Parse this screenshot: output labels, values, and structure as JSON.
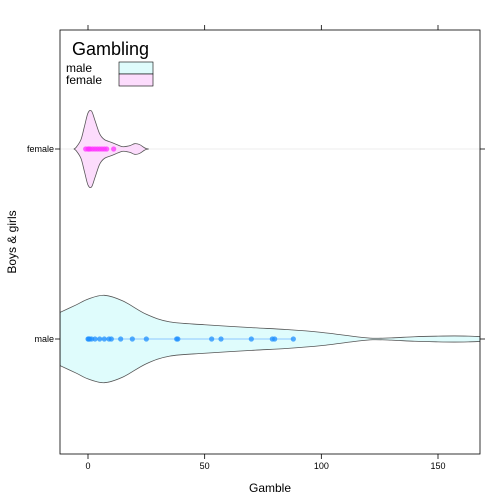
{
  "chart_data": {
    "type": "violin",
    "title": "",
    "xlabel": "Gamble",
    "ylabel": "Boys & girls",
    "xlim": [
      -12,
      168
    ],
    "x_ticks": [
      0,
      50,
      100,
      150
    ],
    "x_tick_labels": [
      "0",
      "50",
      "100",
      "150"
    ],
    "categories": [
      "male",
      "female"
    ],
    "legend": {
      "title": "Gambling",
      "position": "top-left",
      "entries": [
        "male",
        "female"
      ]
    },
    "colors": {
      "male_fill": "#dffcfc",
      "female_fill": "#fcdcfc",
      "male_points": "#1f8fff",
      "female_points": "#ff33ff",
      "outline": "#555555",
      "male_line": "#8ec8ff",
      "female_line": "#f2d2f2"
    },
    "series": [
      {
        "name": "male",
        "points": [
          0,
          0.3,
          0.7,
          1.5,
          3,
          5,
          7,
          9,
          10,
          14,
          19,
          25,
          38,
          38.5,
          53,
          57,
          70,
          79,
          80,
          88
        ],
        "density": [
          [
            -12,
            0.14
          ],
          [
            -5,
            0.18
          ],
          [
            0,
            0.21
          ],
          [
            7,
            0.23
          ],
          [
            15,
            0.2
          ],
          [
            25,
            0.13
          ],
          [
            35,
            0.09
          ],
          [
            50,
            0.075
          ],
          [
            70,
            0.06
          ],
          [
            85,
            0.05
          ],
          [
            100,
            0.035
          ],
          [
            115,
            0.012
          ],
          [
            122,
            0.004
          ],
          [
            130,
            0.006
          ],
          [
            140,
            0.012
          ],
          [
            150,
            0.015
          ],
          [
            157,
            0.016
          ],
          [
            163,
            0.015
          ],
          [
            168,
            0.013
          ]
        ]
      },
      {
        "name": "female",
        "points": [
          -1,
          0,
          0.4,
          1,
          2,
          3,
          4,
          5,
          6,
          7,
          8,
          11
        ],
        "density": [
          [
            -6,
            0.0
          ],
          [
            -5,
            0.01
          ],
          [
            -3,
            0.05
          ],
          [
            -1.5,
            0.12
          ],
          [
            0,
            0.19
          ],
          [
            1.5,
            0.2
          ],
          [
            3,
            0.15
          ],
          [
            5,
            0.08
          ],
          [
            7,
            0.05
          ],
          [
            10,
            0.035
          ],
          [
            13,
            0.02
          ],
          [
            15,
            0.012
          ],
          [
            18,
            0.018
          ],
          [
            20,
            0.028
          ],
          [
            22,
            0.024
          ],
          [
            24,
            0.008
          ],
          [
            25,
            0.002
          ],
          [
            26,
            0.0
          ]
        ]
      }
    ]
  }
}
